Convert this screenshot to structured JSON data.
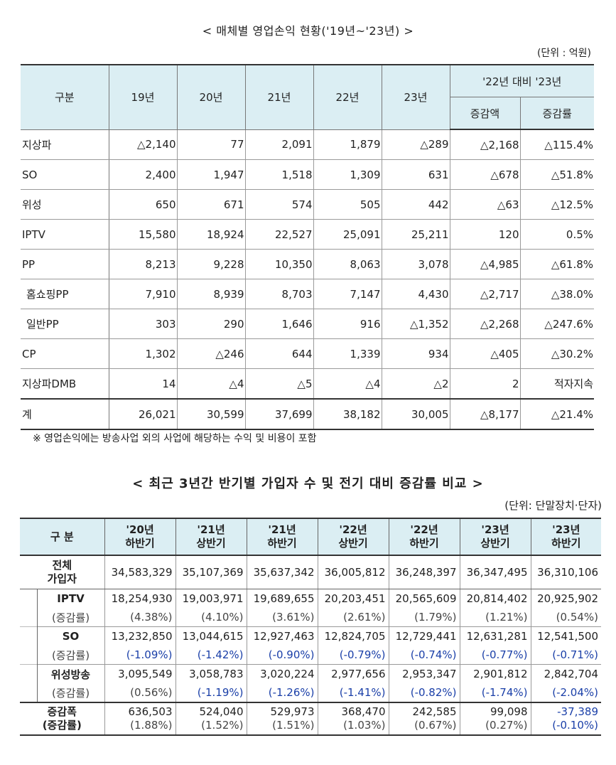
{
  "table1": {
    "title": "< 매체별 영업손익 현황('19년~'23년) >",
    "unit": "(단위 : 억원)",
    "headers": {
      "category": "구분",
      "years": [
        "19년",
        "20년",
        "21년",
        "22년",
        "23년"
      ],
      "compare_group": "'22년 대비 '23년",
      "change_amount": "증감액",
      "change_rate": "증감률"
    },
    "rows": [
      {
        "label": "지상파",
        "values": [
          "△2,140",
          "77",
          "2,091",
          "1,879",
          "△289",
          "△2,168",
          "△115.4%"
        ]
      },
      {
        "label": "SO",
        "values": [
          "2,400",
          "1,947",
          "1,518",
          "1,309",
          "631",
          "△678",
          "△51.8%"
        ]
      },
      {
        "label": "위성",
        "values": [
          "650",
          "671",
          "574",
          "505",
          "442",
          "△63",
          "△12.5%"
        ]
      },
      {
        "label": "IPTV",
        "values": [
          "15,580",
          "18,924",
          "22,527",
          "25,091",
          "25,211",
          "120",
          "0.5%"
        ]
      },
      {
        "label": "PP",
        "values": [
          "8,213",
          "9,228",
          "10,350",
          "8,063",
          "3,078",
          "△4,985",
          "△61.8%"
        ]
      },
      {
        "label": "홈쇼핑PP",
        "values": [
          "7,910",
          "8,939",
          "8,703",
          "7,147",
          "4,430",
          "△2,717",
          "△38.0%"
        ]
      },
      {
        "label": "일반PP",
        "values": [
          "303",
          "290",
          "1,646",
          "916",
          "△1,352",
          "△2,268",
          "△247.6%"
        ]
      },
      {
        "label": "CP",
        "values": [
          "1,302",
          "△246",
          "644",
          "1,339",
          "934",
          "△405",
          "△30.2%"
        ]
      },
      {
        "label": "지상파DMB",
        "values": [
          "14",
          "△4",
          "△5",
          "△4",
          "△2",
          "2",
          "적자지속"
        ]
      }
    ],
    "total": {
      "label": "계",
      "values": [
        "26,021",
        "30,599",
        "37,699",
        "38,182",
        "30,005",
        "△8,177",
        "△21.4%"
      ]
    },
    "note": "※ 영업손익에는 방송사업 외의 사업에 해당하는 수익 및 비용이 포함"
  },
  "table2": {
    "title": "< 최근 3년간 반기별 가입자 수 및 전기 대비 증감률 비교 >",
    "unit": "(단위: 단말장치·단자)",
    "headers": {
      "category": "구 분",
      "periods": [
        {
          "year": "'20년",
          "half": "하반기"
        },
        {
          "year": "'21년",
          "half": "상반기"
        },
        {
          "year": "'21년",
          "half": "하반기"
        },
        {
          "year": "'22년",
          "half": "상반기"
        },
        {
          "year": "'22년",
          "half": "하반기"
        },
        {
          "year": "'23년",
          "half": "상반기"
        },
        {
          "year": "'23년",
          "half": "하반기"
        }
      ]
    },
    "all": {
      "label1": "전체",
      "label2": "가입자",
      "values": [
        "34,583,329",
        "35,107,369",
        "35,637,342",
        "36,005,812",
        "36,248,397",
        "36,347,495",
        "36,310,106"
      ]
    },
    "groups": [
      {
        "label": "IPTV",
        "rate_label": "(증감률)",
        "values": [
          "18,254,930",
          "19,003,971",
          "19,689,655",
          "20,203,451",
          "20,565,609",
          "20,814,402",
          "20,925,902"
        ],
        "rates": [
          "(4.38%)",
          "(4.10%)",
          "(3.61%)",
          "(2.61%)",
          "(1.79%)",
          "(1.21%)",
          "(0.54%)"
        ]
      },
      {
        "label": "SO",
        "rate_label": "(증감률)",
        "values": [
          "13,232,850",
          "13,044,615",
          "12,927,463",
          "12,824,705",
          "12,729,441",
          "12,631,281",
          "12,541,500"
        ],
        "rates": [
          "(-1.09%)",
          "(-1.42%)",
          "(-0.90%)",
          "(-0.79%)",
          "(-0.74%)",
          "(-0.77%)",
          "(-0.71%)"
        ]
      },
      {
        "label": "위성방송",
        "rate_label": "(증감률)",
        "values": [
          "3,095,549",
          "3,058,783",
          "3,020,224",
          "2,977,656",
          "2,953,347",
          "2,901,812",
          "2,842,704"
        ],
        "rates": [
          "(0.56%)",
          "(-1.19%)",
          "(-1.26%)",
          "(-1.41%)",
          "(-0.82%)",
          "(-1.74%)",
          "(-2.04%)"
        ]
      }
    ],
    "total": {
      "label1": "증감폭",
      "label2": "(증감률)",
      "values": [
        "636,503",
        "524,040",
        "529,973",
        "368,470",
        "242,585",
        "99,098",
        "-37,389"
      ],
      "rates": [
        "(1.88%)",
        "(1.52%)",
        "(1.51%)",
        "(1.03%)",
        "(0.67%)",
        "(0.27%)",
        "(-0.10%)"
      ]
    },
    "negative_color": "#1a3fa8"
  }
}
